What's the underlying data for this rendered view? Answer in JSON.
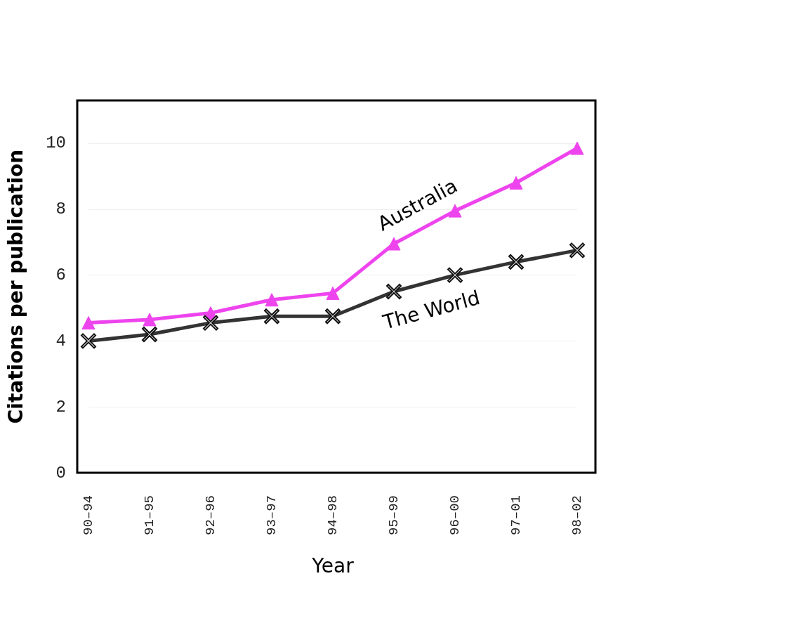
{
  "chart_data": {
    "type": "line",
    "xlabel": "Year",
    "ylabel": "Citations per publication",
    "categories": [
      "90–94",
      "91–95",
      "92–96",
      "93–97",
      "94–98",
      "95–99",
      "96–00",
      "97–01",
      "98–02"
    ],
    "series": [
      {
        "name": "Australia",
        "color": "#ee44ee",
        "marker": "triangle",
        "values": [
          4.55,
          4.65,
          4.85,
          5.25,
          5.45,
          6.95,
          7.95,
          8.8,
          9.85
        ]
      },
      {
        "name": "The World",
        "color": "#333333",
        "marker": "cross",
        "values": [
          4.0,
          4.2,
          4.55,
          4.75,
          4.75,
          5.5,
          6.0,
          6.4,
          6.75
        ]
      }
    ],
    "ylim": [
      0,
      11.3
    ],
    "yticks": [
      0,
      2,
      4,
      6,
      8,
      10
    ],
    "grid": "y",
    "legend": false,
    "line_style": "solid"
  }
}
